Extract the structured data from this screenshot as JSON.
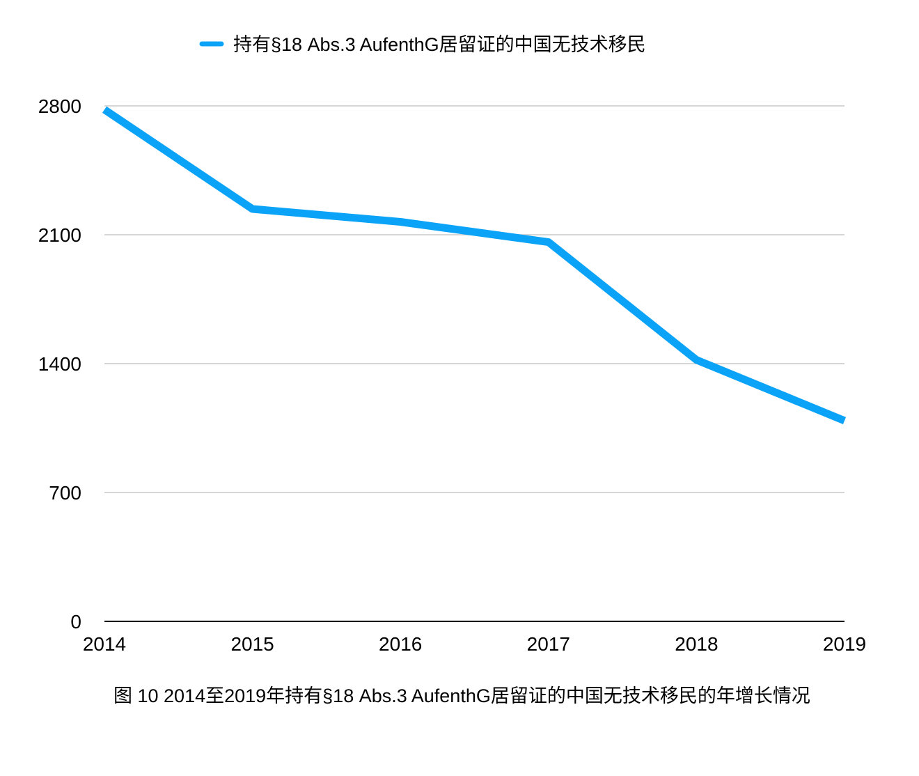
{
  "chart_data": {
    "type": "line",
    "title": "",
    "xlabel": "",
    "ylabel": "",
    "categories": [
      "2014",
      "2015",
      "2016",
      "2017",
      "2018",
      "2019"
    ],
    "series": [
      {
        "name": "持有§18 Abs.3 AufenthG居留证的中国无技术移民",
        "color": "#0aa3f7",
        "values": [
          2780,
          2240,
          2170,
          2060,
          1420,
          1090
        ]
      }
    ],
    "ylim": [
      0,
      2800
    ],
    "yticks": [
      0,
      700,
      1400,
      2100,
      2800
    ],
    "ytick_labels": [
      "0",
      "700",
      "1400",
      "2100",
      "2800"
    ],
    "grid": true,
    "legend_position": "top-center",
    "gridline_color": "#c8c8c8",
    "axis_color": "#000000"
  },
  "caption": "图 10 2014至2019年持有§18 Abs.3 AufenthG居留证的中国无技术移民的年增长情况"
}
